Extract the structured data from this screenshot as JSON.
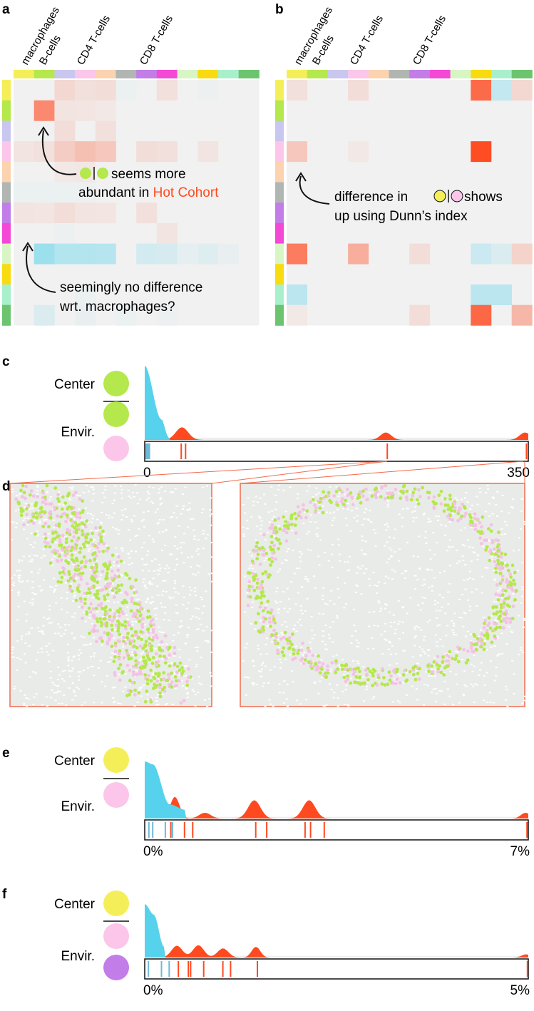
{
  "panel_letters": {
    "a": "a",
    "b": "b",
    "c": "c",
    "d": "d",
    "e": "e",
    "f": "f"
  },
  "colors": {
    "hot": "#ff4a1f",
    "cold": "#56d2ec",
    "grey_bg": "#f1f1f1",
    "frame_zoom": "#f26b4a"
  },
  "cell_types": [
    {
      "color": "#f4ef58"
    },
    {
      "color": "#b4e84c"
    },
    {
      "color": "#c9c6ef"
    },
    {
      "color": "#fbc6e9"
    },
    {
      "color": "#fbd3b0"
    },
    {
      "color": "#b1b6b3"
    },
    {
      "color": "#c27de8"
    },
    {
      "color": "#f448d6"
    },
    {
      "color": "#d8f6c4"
    },
    {
      "color": "#f9db12"
    },
    {
      "color": "#a8f0cc"
    },
    {
      "color": "#6cc46f"
    }
  ],
  "heatmap_labels": {
    "a": [
      "macrophages",
      "B-cells",
      "CD4 T-cells",
      "CD8 T-cells"
    ],
    "b": [
      "macrophages",
      "B-cells",
      "CD4 T-cells",
      "CD8 T-cells"
    ]
  },
  "annotations": {
    "a1_line1": "seems more",
    "a1_line2_prefix": "abundant in ",
    "a1_line2_hot": "Hot Cohort",
    "a2_line1": "seemingly no difference",
    "a2_line2": "wrt. macrophages?",
    "b1_line1_prefix": "difference in ",
    "b1_line1_suffix": " shows",
    "b1_line2": "up using Dunn’s index"
  },
  "chart_data": [
    {
      "type": "heatmap",
      "panel": "a",
      "rows": 12,
      "cols": 12,
      "cells": [
        {
          "r": 0,
          "c": 2,
          "v": 0.15
        },
        {
          "r": 0,
          "c": 3,
          "v": 0.1
        },
        {
          "r": 0,
          "c": 4,
          "v": 0.12
        },
        {
          "r": 0,
          "c": 5,
          "v": -0.04
        },
        {
          "r": 0,
          "c": 7,
          "v": 0.1
        },
        {
          "r": 0,
          "c": 9,
          "v": -0.03
        },
        {
          "r": 1,
          "c": 1,
          "v": 0.62
        },
        {
          "r": 1,
          "c": 2,
          "v": 0.08
        },
        {
          "r": 1,
          "c": 3,
          "v": 0.07
        },
        {
          "r": 1,
          "c": 4,
          "v": 0.05
        },
        {
          "r": 2,
          "c": 2,
          "v": 0.12
        },
        {
          "r": 2,
          "c": 4,
          "v": 0.1
        },
        {
          "r": 3,
          "c": 0,
          "v": 0.08
        },
        {
          "r": 3,
          "c": 1,
          "v": 0.1
        },
        {
          "r": 3,
          "c": 2,
          "v": 0.22
        },
        {
          "r": 3,
          "c": 3,
          "v": 0.3
        },
        {
          "r": 3,
          "c": 4,
          "v": 0.25
        },
        {
          "r": 3,
          "c": 6,
          "v": 0.12
        },
        {
          "r": 3,
          "c": 7,
          "v": 0.1
        },
        {
          "r": 3,
          "c": 9,
          "v": 0.08
        },
        {
          "r": 4,
          "c": 2,
          "v": 0.05
        },
        {
          "r": 4,
          "c": 3,
          "v": 0.06
        },
        {
          "r": 5,
          "c": 0,
          "v": -0.04
        },
        {
          "r": 5,
          "c": 1,
          "v": -0.04
        },
        {
          "r": 5,
          "c": 2,
          "v": -0.04
        },
        {
          "r": 5,
          "c": 3,
          "v": -0.03
        },
        {
          "r": 6,
          "c": 0,
          "v": 0.08
        },
        {
          "r": 6,
          "c": 1,
          "v": 0.07
        },
        {
          "r": 6,
          "c": 2,
          "v": 0.12
        },
        {
          "r": 6,
          "c": 3,
          "v": 0.08
        },
        {
          "r": 6,
          "c": 4,
          "v": 0.07
        },
        {
          "r": 6,
          "c": 6,
          "v": 0.1
        },
        {
          "r": 7,
          "c": 2,
          "v": -0.03
        },
        {
          "r": 7,
          "c": 7,
          "v": 0.08
        },
        {
          "r": 8,
          "c": 1,
          "v": -0.55
        },
        {
          "r": 8,
          "c": 2,
          "v": -0.4
        },
        {
          "r": 8,
          "c": 3,
          "v": -0.4
        },
        {
          "r": 8,
          "c": 4,
          "v": -0.38
        },
        {
          "r": 8,
          "c": 6,
          "v": -0.2
        },
        {
          "r": 8,
          "c": 7,
          "v": -0.18
        },
        {
          "r": 8,
          "c": 8,
          "v": -0.08
        },
        {
          "r": 8,
          "c": 9,
          "v": -0.12
        },
        {
          "r": 8,
          "c": 10,
          "v": -0.05
        },
        {
          "r": 10,
          "c": 3,
          "v": -0.04
        },
        {
          "r": 11,
          "c": 1,
          "v": -0.15
        },
        {
          "r": 11,
          "c": 3,
          "v": -0.05
        },
        {
          "r": 11,
          "c": 5,
          "v": -0.04
        },
        {
          "r": 11,
          "c": 7,
          "v": -0.03
        }
      ]
    },
    {
      "type": "heatmap",
      "panel": "b",
      "rows": 12,
      "cols": 12,
      "cells": [
        {
          "r": 0,
          "c": 0,
          "v": 0.1
        },
        {
          "r": 0,
          "c": 3,
          "v": 0.12
        },
        {
          "r": 0,
          "c": 9,
          "v": 0.8
        },
        {
          "r": 0,
          "c": 10,
          "v": -0.3
        },
        {
          "r": 0,
          "c": 11,
          "v": 0.15
        },
        {
          "r": 3,
          "c": 0,
          "v": 0.25
        },
        {
          "r": 3,
          "c": 3,
          "v": 0.05
        },
        {
          "r": 3,
          "c": 9,
          "v": 0.98
        },
        {
          "r": 8,
          "c": 0,
          "v": 0.7
        },
        {
          "r": 8,
          "c": 3,
          "v": 0.4
        },
        {
          "r": 8,
          "c": 6,
          "v": 0.12
        },
        {
          "r": 8,
          "c": 9,
          "v": -0.25
        },
        {
          "r": 8,
          "c": 10,
          "v": -0.15
        },
        {
          "r": 8,
          "c": 11,
          "v": 0.18
        },
        {
          "r": 10,
          "c": 0,
          "v": -0.35
        },
        {
          "r": 10,
          "c": 9,
          "v": -0.35
        },
        {
          "r": 10,
          "c": 10,
          "v": -0.35
        },
        {
          "r": 11,
          "c": 0,
          "v": 0.05
        },
        {
          "r": 11,
          "c": 6,
          "v": 0.12
        },
        {
          "r": 11,
          "c": 9,
          "v": 0.82
        },
        {
          "r": 11,
          "c": 11,
          "v": 0.35
        }
      ]
    },
    {
      "type": "area",
      "panel": "c",
      "legend": {
        "center": "Center",
        "envir": "Envir.",
        "center_colors": [
          "#b4e84c"
        ],
        "envir_colors": [
          "#b4e84c",
          "#fbc6e9"
        ]
      },
      "xlim": [
        0,
        350
      ],
      "tick_labels": [
        "0",
        "350"
      ],
      "cold_values": [
        0,
        1,
        2,
        3
      ],
      "hot_values": [
        32,
        36,
        220,
        347
      ],
      "cold_peak": [
        {
          "x": 0,
          "h": 1
        },
        {
          "x": 15,
          "h": 0.28
        },
        {
          "x": 22,
          "h": 0.03
        }
      ],
      "hot_peaks": [
        {
          "x": 34,
          "h": 0.17,
          "w": 8
        },
        {
          "x": 220,
          "h": 0.1,
          "w": 7
        },
        {
          "x": 347,
          "h": 0.1,
          "w": 7
        }
      ]
    },
    {
      "type": "area",
      "panel": "e",
      "legend": {
        "center": "Center",
        "envir": "Envir.",
        "center_colors": [
          "#f4ef58"
        ],
        "envir_colors": [
          "#fbc6e9"
        ]
      },
      "xlim": [
        0,
        7
      ],
      "tick_labels": [
        "0%",
        "7%"
      ],
      "cold_values": [
        0.05,
        0.12,
        0.35,
        0.48
      ],
      "hot_values": [
        0.45,
        0.7,
        0.85,
        2.0,
        2.2,
        2.9,
        3.0,
        3.25,
        6.95
      ],
      "cold_peak": [
        {
          "x": 0,
          "h": 1
        },
        {
          "x": 0.15,
          "h": 0.95
        },
        {
          "x": 0.45,
          "h": 0.25
        },
        {
          "x": 0.75,
          "h": 0.15
        }
      ],
      "hot_peaks": [
        {
          "x": 0.55,
          "h": 0.38,
          "w": 0.12
        },
        {
          "x": 1.1,
          "h": 0.1,
          "w": 0.15
        },
        {
          "x": 2.0,
          "h": 0.32,
          "w": 0.16
        },
        {
          "x": 3.0,
          "h": 0.32,
          "w": 0.16
        },
        {
          "x": 6.95,
          "h": 0.1,
          "w": 0.12
        }
      ]
    },
    {
      "type": "area",
      "panel": "f",
      "legend": {
        "center": "Center",
        "envir": "Envir.",
        "center_colors": [
          "#f4ef58"
        ],
        "envir_colors": [
          "#fbc6e9",
          "#c27de8"
        ]
      },
      "xlim": [
        0,
        5
      ],
      "tick_labels": [
        "0%",
        "5%"
      ],
      "cold_values": [
        0.03,
        0.2,
        0.3
      ],
      "hot_values": [
        0.42,
        0.55,
        0.58,
        0.75,
        1.0,
        1.1,
        1.45,
        4.97
      ],
      "cold_peak": [
        {
          "x": 0,
          "h": 1
        },
        {
          "x": 0.12,
          "h": 0.8
        },
        {
          "x": 0.25,
          "h": 0.2
        }
      ],
      "hot_peaks": [
        {
          "x": 0.42,
          "h": 0.22,
          "w": 0.1
        },
        {
          "x": 0.7,
          "h": 0.23,
          "w": 0.1
        },
        {
          "x": 1.02,
          "h": 0.17,
          "w": 0.1
        },
        {
          "x": 1.45,
          "h": 0.2,
          "w": 0.08
        },
        {
          "x": 4.97,
          "h": 0.06,
          "w": 0.08
        }
      ]
    }
  ]
}
